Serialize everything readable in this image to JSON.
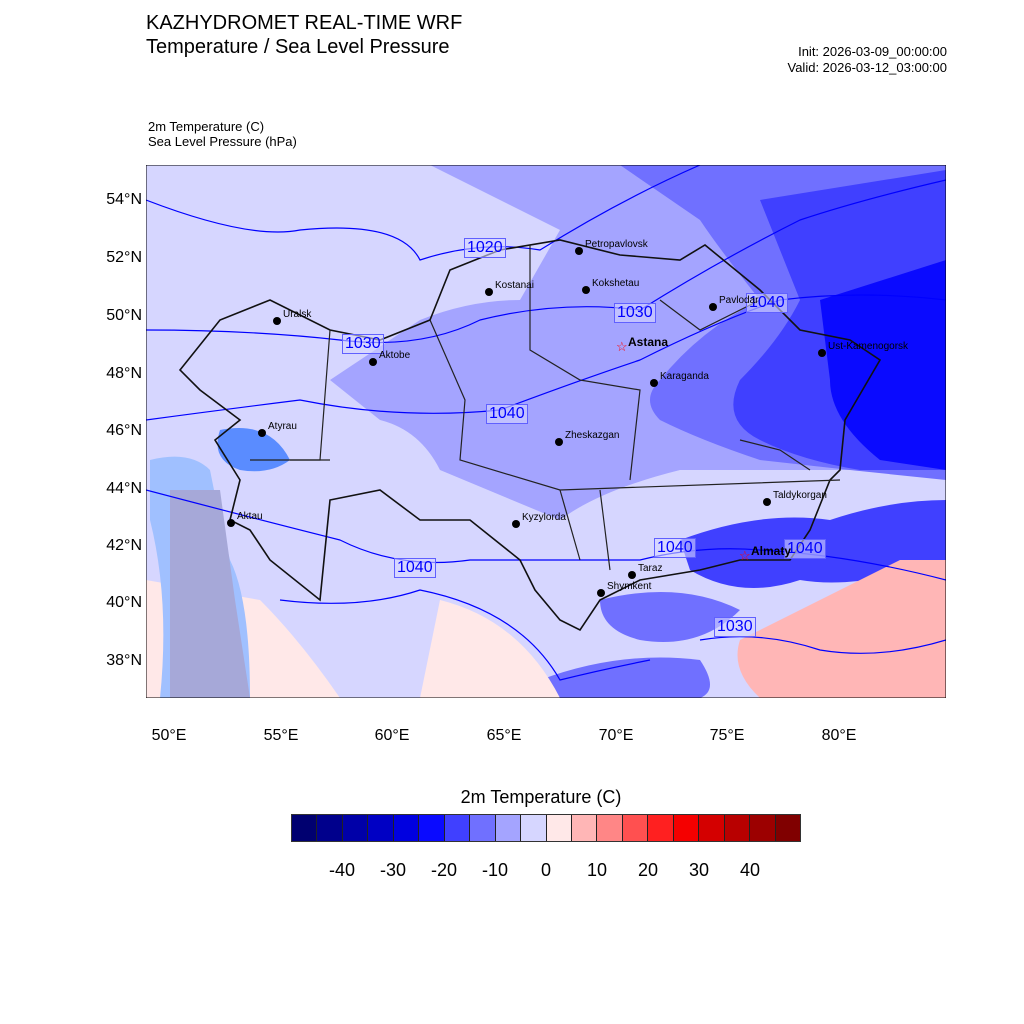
{
  "header": {
    "title": "KAZHYDROMET REAL-TIME WRF",
    "subtitle": "Temperature / Sea Level Pressure",
    "init": "Init: 2026-03-09_00:00:00",
    "valid": "Valid: 2026-03-12_03:00:00"
  },
  "fields": {
    "temperature": "2m Temperature   (C)",
    "pressure": "Sea Level Pressure   (hPa)"
  },
  "axes": {
    "lat_ticks": [
      "54°N",
      "52°N",
      "50°N",
      "48°N",
      "46°N",
      "44°N",
      "42°N",
      "40°N",
      "38°N"
    ],
    "lon_ticks": [
      "50°E",
      "55°E",
      "60°E",
      "65°E",
      "70°E",
      "75°E",
      "80°E"
    ]
  },
  "cities": [
    {
      "name": "Petropavlovsk"
    },
    {
      "name": "Kostanai"
    },
    {
      "name": "Kokshetau"
    },
    {
      "name": "Uralsk"
    },
    {
      "name": "Pavlodar"
    },
    {
      "name": "Aktobe"
    },
    {
      "name": "Astana",
      "capital": true
    },
    {
      "name": "Ust-Kamenogorsk"
    },
    {
      "name": "Karaganda"
    },
    {
      "name": "Atyrau"
    },
    {
      "name": "Zheskazgan"
    },
    {
      "name": "Taldykorgan"
    },
    {
      "name": "Aktau"
    },
    {
      "name": "Kyzylorda"
    },
    {
      "name": "Almaty",
      "capital": true
    },
    {
      "name": "Taraz"
    },
    {
      "name": "Shymkent"
    }
  ],
  "isobar_labels": [
    "1020",
    "1030",
    "1030",
    "1040",
    "1040",
    "1040",
    "1030",
    "1040",
    "1040"
  ],
  "colorbar": {
    "title": "2m Temperature  (C)",
    "labels": [
      "-40",
      "-30",
      "-20",
      "-10",
      "0",
      "10",
      "20",
      "30",
      "40"
    ],
    "boundaries_min": -50,
    "boundaries_max": 50,
    "step": 5,
    "colors": [
      "#000070",
      "#00008c",
      "#0000a8",
      "#0000c4",
      "#0000e0",
      "#0a0aff",
      "#4040ff",
      "#7070ff",
      "#a4a4ff",
      "#d6d6ff",
      "#ffe8e8",
      "#ffb6b6",
      "#ff8686",
      "#ff5050",
      "#ff2020",
      "#f50000",
      "#d40000",
      "#b80000",
      "#9c0000",
      "#800000"
    ]
  }
}
